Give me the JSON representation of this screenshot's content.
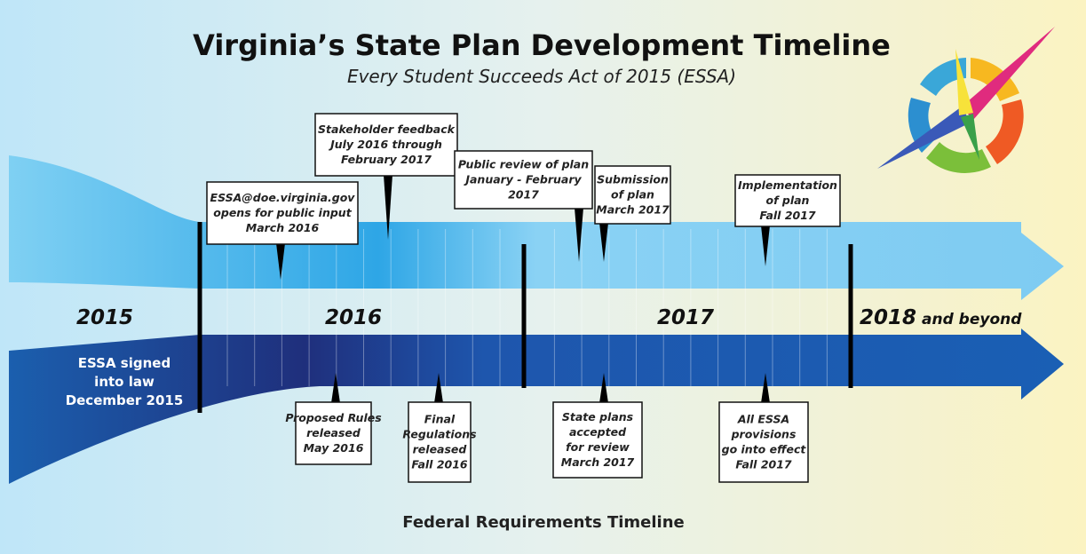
{
  "header": {
    "title": "Virginia’s State Plan Development Timeline",
    "subtitle": "Every Student Succeeds Act of 2015 (ESSA)"
  },
  "years": [
    {
      "label": "2015"
    },
    {
      "label": "2016"
    },
    {
      "label": "2017"
    },
    {
      "label": "2018",
      "suffix": "and beyond"
    }
  ],
  "state_events": [
    {
      "lines": [
        "ESSA@doe.virginia.gov",
        "opens for public input",
        "March 2016"
      ]
    },
    {
      "lines": [
        "Stakeholder feedback",
        "July 2016 through",
        "February 2017"
      ]
    },
    {
      "lines": [
        "Public review of plan",
        "January - February",
        "2017"
      ]
    },
    {
      "lines": [
        "Submission",
        "of plan",
        "March 2017"
      ]
    },
    {
      "lines": [
        "Implementation",
        "of plan",
        "Fall 2017"
      ]
    }
  ],
  "signed": {
    "lines": [
      "ESSA signed",
      "into law",
      "December 2015"
    ]
  },
  "federal_events": [
    {
      "lines": [
        "Proposed Rules",
        "released",
        "May 2016"
      ]
    },
    {
      "lines": [
        "Final",
        "Regulations",
        "released",
        "Fall 2016"
      ]
    },
    {
      "lines": [
        "State plans",
        "accepted",
        "for review",
        "March 2017"
      ]
    },
    {
      "lines": [
        "All ESSA",
        "provisions",
        "go into effect",
        "Fall 2017"
      ]
    }
  ],
  "footer": {
    "label": "Federal Requirements Timeline"
  }
}
